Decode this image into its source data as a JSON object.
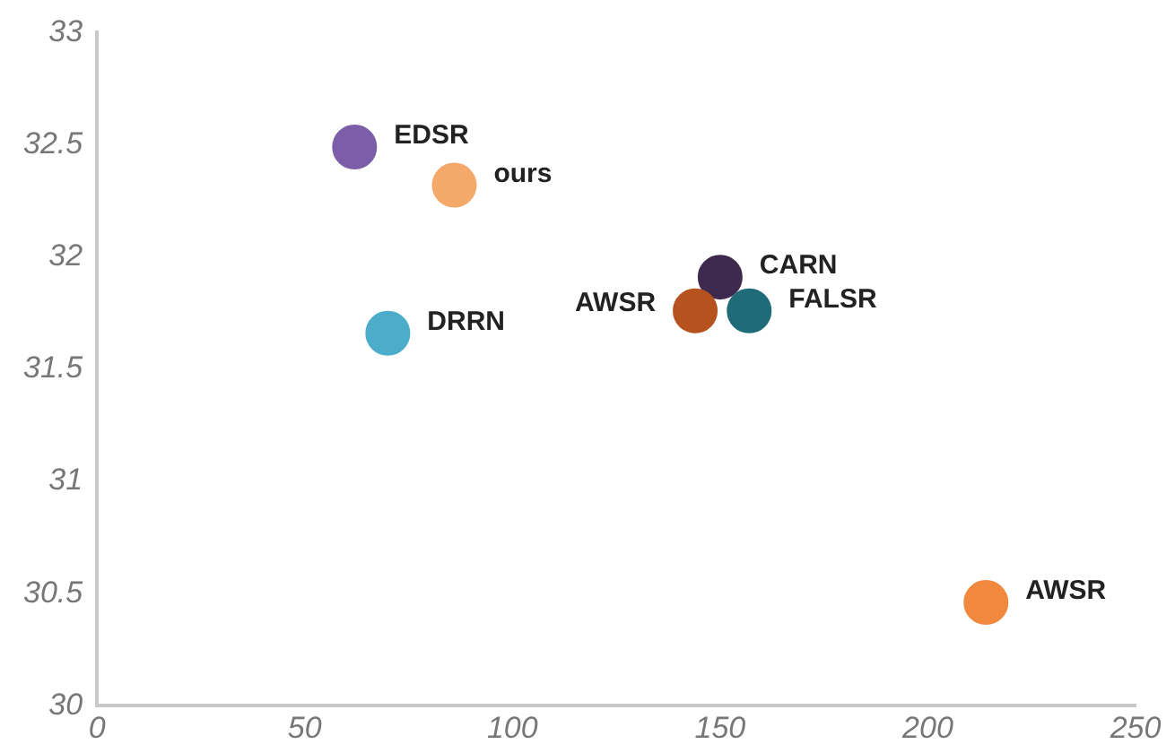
{
  "chart_data": {
    "type": "scatter",
    "x": [
      62,
      86,
      150,
      144,
      157,
      70,
      214
    ],
    "values": [
      32.49,
      32.32,
      31.91,
      31.76,
      31.76,
      31.66,
      30.46
    ],
    "colors": [
      "#7b5ea7",
      "#f4a86a",
      "#3e2a4f",
      "#b5521e",
      "#1f6b78",
      "#4badc9",
      "#f0883e"
    ],
    "marker": "circle",
    "xlim": [
      0,
      250
    ],
    "xticks": [
      0,
      50,
      100,
      150,
      200,
      250
    ],
    "ylim": [
      30,
      33
    ],
    "yticks": [
      30,
      30.5,
      31,
      31.5,
      32,
      32.5,
      33
    ],
    "grid": false,
    "legend": false,
    "annotations": [
      {
        "text": "EDSR",
        "x": 62,
        "y": 32.49
      },
      {
        "text": "ours",
        "x": 86,
        "y": 32.32
      },
      {
        "text": "CARN",
        "x": 150,
        "y": 31.91
      },
      {
        "text": "AWSR",
        "x": 144,
        "y": 31.76
      },
      {
        "text": "FALSR",
        "x": 157,
        "y": 31.76
      },
      {
        "text": "DRRN",
        "x": 70,
        "y": 31.66
      },
      {
        "text": "AWSR",
        "x": 214,
        "y": 30.46
      }
    ]
  }
}
